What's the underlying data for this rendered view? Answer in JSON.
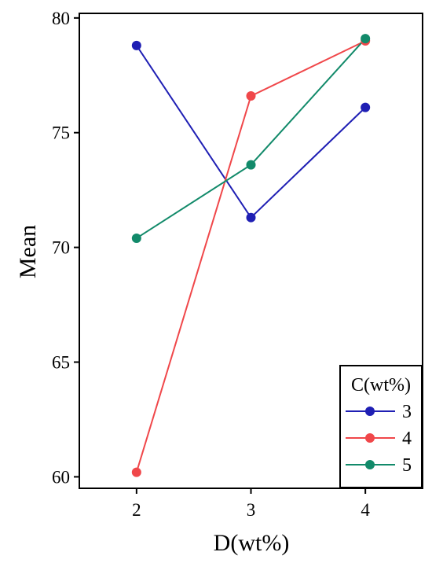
{
  "chart_data": {
    "type": "line",
    "title": "",
    "xlabel": "D(wt%)",
    "ylabel": "Mean",
    "categories": [
      "2",
      "3",
      "4"
    ],
    "x": [
      2,
      3,
      4
    ],
    "xlim": [
      1.5,
      4.5
    ],
    "ylim": [
      59.5,
      80.2
    ],
    "yticks": [
      60,
      65,
      70,
      75,
      80
    ],
    "grid": false,
    "legend": {
      "title": "C(wt%)",
      "placement": "bottom-right"
    },
    "series": [
      {
        "name": "3",
        "color": "#1f1fb4",
        "values": [
          78.8,
          71.3,
          76.1
        ]
      },
      {
        "name": "4",
        "color": "#f0474a",
        "values": [
          60.2,
          76.6,
          79.0
        ]
      },
      {
        "name": "5",
        "color": "#128a6a",
        "values": [
          70.4,
          73.6,
          79.1
        ]
      }
    ]
  }
}
